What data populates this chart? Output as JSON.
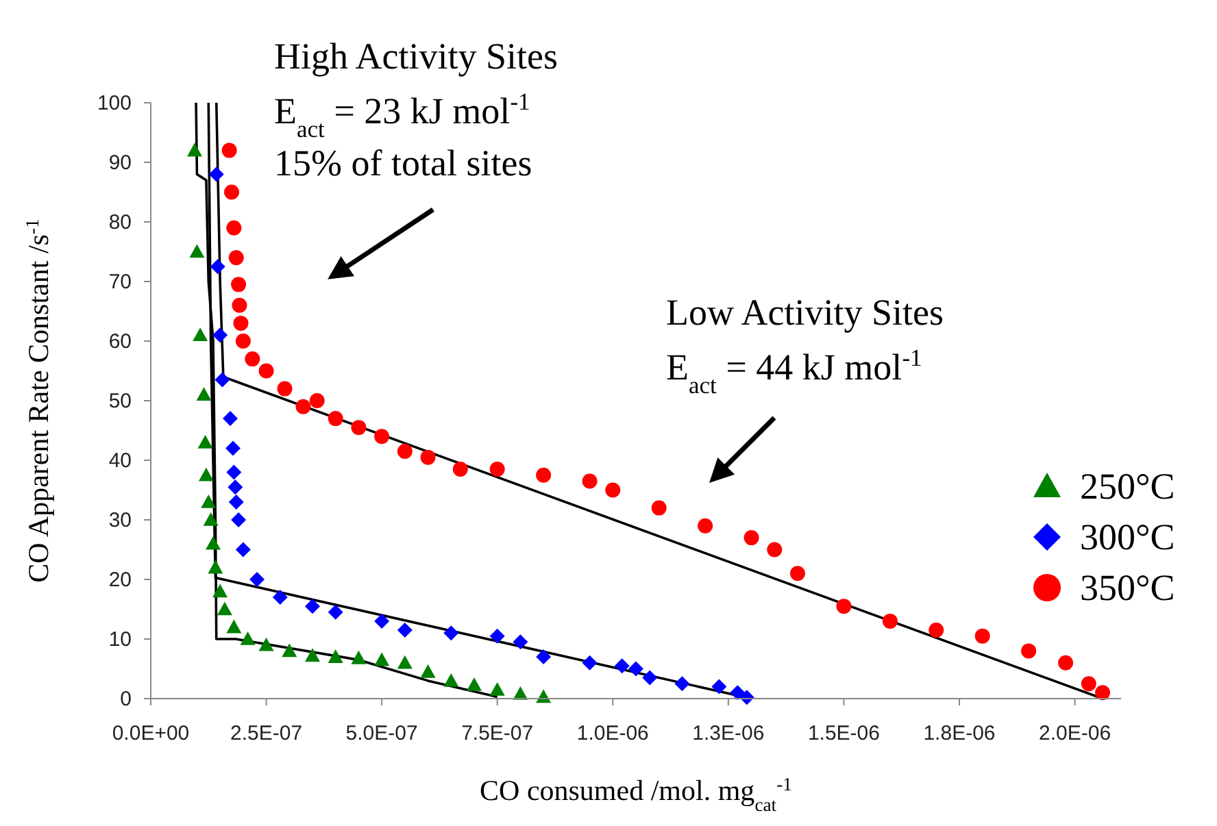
{
  "chart_data": {
    "type": "scatter",
    "xlabel": "CO consumed /mol. mg$_{cat}$$^{-1}$",
    "ylabel": "CO Apparent Rate Constant /s$^{-1}$",
    "xlim": [
      0,
      2.1e-06
    ],
    "ylim": [
      0,
      100
    ],
    "xticks": [
      {
        "value": 0,
        "label": "0.0E+00"
      },
      {
        "value": 2.5e-07,
        "label": "2.5E-07"
      },
      {
        "value": 5e-07,
        "label": "5.0E-07"
      },
      {
        "value": 7.5e-07,
        "label": "7.5E-07"
      },
      {
        "value": 1e-06,
        "label": "1.0E-06"
      },
      {
        "value": 1.25e-06,
        "label": "1.3E-06"
      },
      {
        "value": 1.5e-06,
        "label": "1.5E-06"
      },
      {
        "value": 1.75e-06,
        "label": "1.8E-06"
      },
      {
        "value": 2e-06,
        "label": "2.0E-06"
      }
    ],
    "yticks": [
      0,
      10,
      20,
      30,
      40,
      50,
      60,
      70,
      80,
      90,
      100
    ],
    "legend": "right",
    "grid": false,
    "annotations": [
      "High Activity Sites",
      "E$_{act}$ = 23 kJ mol$^{-1}$",
      "15% of total sites",
      "Low Activity Sites",
      "E$_{act}$ = 44 kJ mol$^{-1}$"
    ],
    "series": [
      {
        "type": "line",
        "color": "#000000",
        "marker": "none",
        "x": [
          9.8e-08,
          1e-07,
          1.2e-07,
          1.25e-07,
          1.35e-07,
          1.4e-07,
          1.42e-07,
          1.84e-07,
          4.5e-07,
          6e-07,
          7.5e-07
        ],
        "values": [
          100,
          88,
          87,
          70,
          60,
          30,
          10,
          10,
          6.5,
          3,
          0.3
        ]
      },
      {
        "type": "line",
        "color": "#000000",
        "marker": "none",
        "x": [
          1.25e-07,
          1.3e-07,
          1.4e-07,
          1.3e-06
        ],
        "values": [
          100,
          60,
          20.3,
          0
        ]
      },
      {
        "type": "line",
        "color": "#000000",
        "marker": "none",
        "x": [
          1.42e-07,
          1.5e-07,
          1.57e-07,
          2.06e-06
        ],
        "values": [
          100,
          70,
          54,
          0
        ]
      },
      {
        "name": "250°C",
        "color": "#008000",
        "marker": "triangle",
        "x": [
          9.5e-08,
          1e-07,
          1.07e-07,
          1.15e-07,
          1.18e-07,
          1.2e-07,
          1.25e-07,
          1.3e-07,
          1.35e-07,
          1.4e-07,
          1.5e-07,
          1.6e-07,
          1.8e-07,
          2.1e-07,
          2.5e-07,
          3e-07,
          3.5e-07,
          4e-07,
          4.5e-07,
          5e-07,
          5.5e-07,
          6e-07,
          6.5e-07,
          7e-07,
          7.5e-07,
          8e-07,
          8.5e-07
        ],
        "values": [
          92,
          75,
          61,
          51,
          43,
          37.5,
          33,
          30,
          26,
          22,
          18,
          15,
          12,
          10,
          9,
          8,
          7.2,
          7,
          6.8,
          6.5,
          6,
          4.5,
          3,
          2.3,
          1.5,
          0.8,
          0.3
        ]
      },
      {
        "name": "300°C",
        "color": "#0000ff",
        "marker": "diamond",
        "x": [
          1.42e-07,
          1.45e-07,
          1.5e-07,
          1.55e-07,
          1.72e-07,
          1.78e-07,
          1.8e-07,
          1.83e-07,
          1.85e-07,
          1.9e-07,
          2e-07,
          2.3e-07,
          2.8e-07,
          3.5e-07,
          4e-07,
          5e-07,
          5.5e-07,
          6.5e-07,
          7.5e-07,
          8e-07,
          8.5e-07,
          9.5e-07,
          1.02e-06,
          1.05e-06,
          1.08e-06,
          1.15e-06,
          1.23e-06,
          1.27e-06,
          1.29e-06
        ],
        "values": [
          88,
          72.5,
          61,
          53.5,
          47,
          42,
          38,
          35.5,
          33,
          30,
          25,
          20,
          17,
          15.5,
          14.5,
          13,
          11.5,
          11,
          10.5,
          9.5,
          7,
          6,
          5.5,
          5,
          3.5,
          2.5,
          2,
          1,
          0.2
        ]
      },
      {
        "name": "350°C",
        "color": "#ff0000",
        "marker": "circle",
        "x": [
          1.7e-07,
          1.75e-07,
          1.8e-07,
          1.85e-07,
          1.9e-07,
          1.92e-07,
          1.95e-07,
          2e-07,
          2.2e-07,
          2.5e-07,
          2.9e-07,
          3.3e-07,
          3.6e-07,
          4e-07,
          4.5e-07,
          5e-07,
          5.5e-07,
          6e-07,
          6.7e-07,
          7.5e-07,
          8.5e-07,
          9.5e-07,
          1e-06,
          1.1e-06,
          1.2e-06,
          1.3e-06,
          1.35e-06,
          1.4e-06,
          1.5e-06,
          1.6e-06,
          1.7e-06,
          1.8e-06,
          1.9e-06,
          1.98e-06,
          2.03e-06,
          2.06e-06
        ],
        "values": [
          92,
          85,
          79,
          74,
          69.5,
          66,
          63,
          60,
          57,
          55,
          52,
          49,
          50,
          47,
          45.5,
          44,
          41.5,
          40.5,
          38.5,
          38.5,
          37.5,
          36.5,
          35,
          32,
          29,
          27,
          25,
          21,
          15.5,
          13,
          11.5,
          10.5,
          8,
          6,
          2.5,
          1
        ]
      }
    ]
  }
}
